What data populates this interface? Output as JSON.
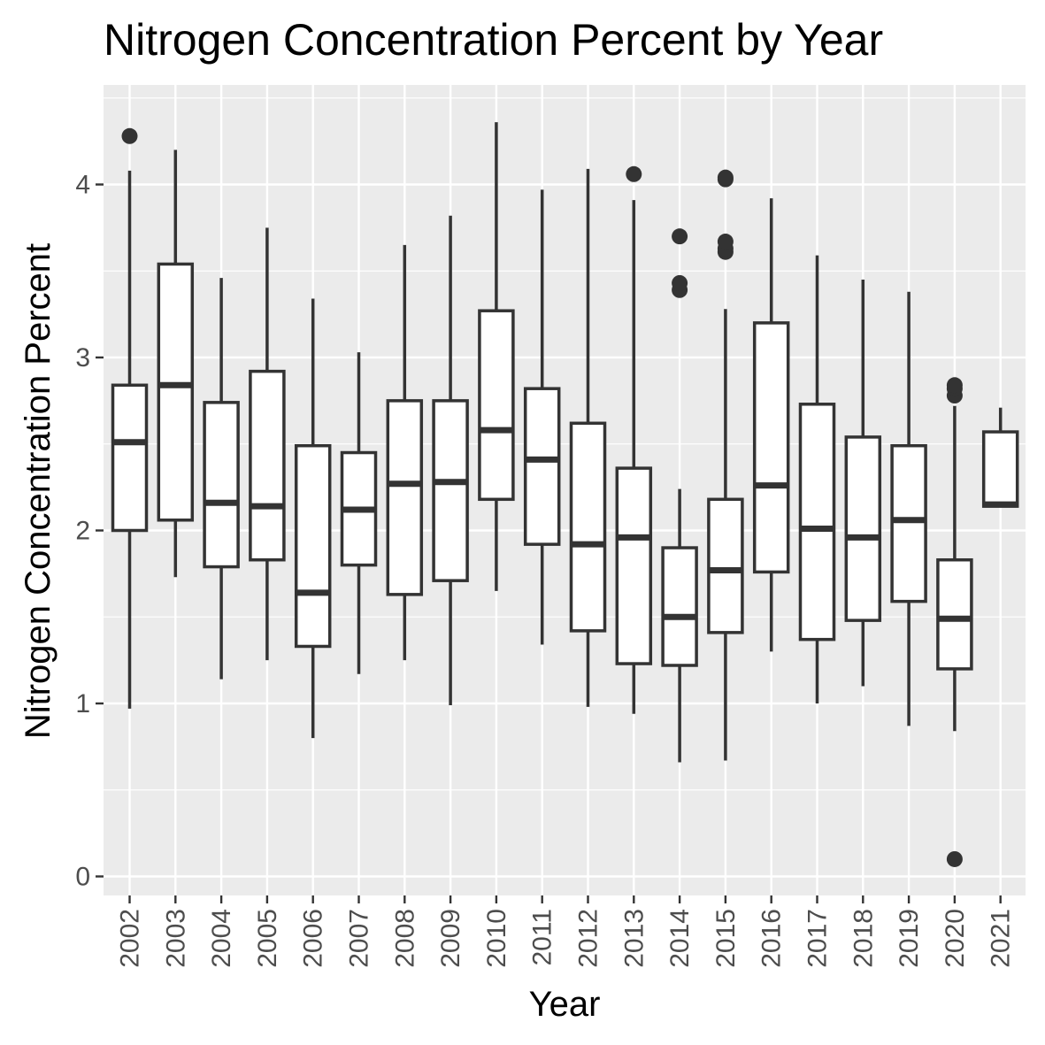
{
  "chart_data": {
    "type": "boxplot",
    "title": "Nitrogen Concentration Percent by Year",
    "xlabel": "Year",
    "ylabel": "Nitrogen Concentration Percent",
    "ylim": [
      -0.1,
      4.5
    ],
    "y_ticks": [
      0,
      1,
      2,
      3,
      4
    ],
    "grid": true,
    "categories": [
      "2002",
      "2003",
      "2004",
      "2005",
      "2006",
      "2007",
      "2008",
      "2009",
      "2010",
      "2011",
      "2012",
      "2013",
      "2014",
      "2015",
      "2016",
      "2017",
      "2018",
      "2019",
      "2020",
      "2021"
    ],
    "boxes": [
      {
        "category": "2002",
        "whisker_low": 0.97,
        "q1": 2.0,
        "median": 2.51,
        "q3": 2.84,
        "whisker_high": 4.08,
        "outliers": [
          4.28
        ]
      },
      {
        "category": "2003",
        "whisker_low": 1.73,
        "q1": 2.06,
        "median": 2.84,
        "q3": 3.54,
        "whisker_high": 4.2,
        "outliers": []
      },
      {
        "category": "2004",
        "whisker_low": 1.14,
        "q1": 1.79,
        "median": 2.16,
        "q3": 2.74,
        "whisker_high": 3.46,
        "outliers": []
      },
      {
        "category": "2005",
        "whisker_low": 1.25,
        "q1": 1.83,
        "median": 2.14,
        "q3": 2.92,
        "whisker_high": 3.75,
        "outliers": []
      },
      {
        "category": "2006",
        "whisker_low": 0.8,
        "q1": 1.33,
        "median": 1.64,
        "q3": 2.49,
        "whisker_high": 3.34,
        "outliers": []
      },
      {
        "category": "2007",
        "whisker_low": 1.17,
        "q1": 1.8,
        "median": 2.12,
        "q3": 2.45,
        "whisker_high": 3.03,
        "outliers": []
      },
      {
        "category": "2008",
        "whisker_low": 1.25,
        "q1": 1.63,
        "median": 2.27,
        "q3": 2.75,
        "whisker_high": 3.65,
        "outliers": []
      },
      {
        "category": "2009",
        "whisker_low": 0.99,
        "q1": 1.71,
        "median": 2.28,
        "q3": 2.75,
        "whisker_high": 3.82,
        "outliers": []
      },
      {
        "category": "2010",
        "whisker_low": 1.65,
        "q1": 2.18,
        "median": 2.58,
        "q3": 3.27,
        "whisker_high": 4.36,
        "outliers": []
      },
      {
        "category": "2011",
        "whisker_low": 1.34,
        "q1": 1.92,
        "median": 2.41,
        "q3": 2.82,
        "whisker_high": 3.97,
        "outliers": []
      },
      {
        "category": "2012",
        "whisker_low": 0.98,
        "q1": 1.42,
        "median": 1.92,
        "q3": 2.62,
        "whisker_high": 4.09,
        "outliers": []
      },
      {
        "category": "2013",
        "whisker_low": 0.94,
        "q1": 1.23,
        "median": 1.96,
        "q3": 2.36,
        "whisker_high": 3.91,
        "outliers": [
          4.06
        ]
      },
      {
        "category": "2014",
        "whisker_low": 0.66,
        "q1": 1.22,
        "median": 1.5,
        "q3": 1.9,
        "whisker_high": 2.24,
        "outliers": [
          3.39,
          3.43,
          3.7
        ]
      },
      {
        "category": "2015",
        "whisker_low": 0.67,
        "q1": 1.41,
        "median": 1.77,
        "q3": 2.18,
        "whisker_high": 3.28,
        "outliers": [
          3.61,
          3.63,
          3.67,
          4.03,
          4.04
        ]
      },
      {
        "category": "2016",
        "whisker_low": 1.3,
        "q1": 1.76,
        "median": 2.26,
        "q3": 3.2,
        "whisker_high": 3.92,
        "outliers": []
      },
      {
        "category": "2017",
        "whisker_low": 1.0,
        "q1": 1.37,
        "median": 2.01,
        "q3": 2.73,
        "whisker_high": 3.59,
        "outliers": []
      },
      {
        "category": "2018",
        "whisker_low": 1.1,
        "q1": 1.48,
        "median": 1.96,
        "q3": 2.54,
        "whisker_high": 3.45,
        "outliers": []
      },
      {
        "category": "2019",
        "whisker_low": 0.87,
        "q1": 1.59,
        "median": 2.06,
        "q3": 2.49,
        "whisker_high": 3.38,
        "outliers": []
      },
      {
        "category": "2020",
        "whisker_low": 0.84,
        "q1": 1.2,
        "median": 1.49,
        "q3": 1.83,
        "whisker_high": 2.72,
        "outliers": [
          0.1,
          2.78,
          2.82,
          2.84
        ]
      },
      {
        "category": "2021",
        "whisker_low": 2.14,
        "q1": 2.14,
        "median": 2.15,
        "q3": 2.57,
        "whisker_high": 2.71,
        "outliers": []
      }
    ],
    "colors": {
      "panel_background": "#ebebeb",
      "grid_line": "#ffffff",
      "box_fill": "#ffffff",
      "box_stroke": "#333333",
      "outlier": "#333333",
      "tick_label": "#4d4d4d",
      "tick_mark": "#333333"
    }
  }
}
